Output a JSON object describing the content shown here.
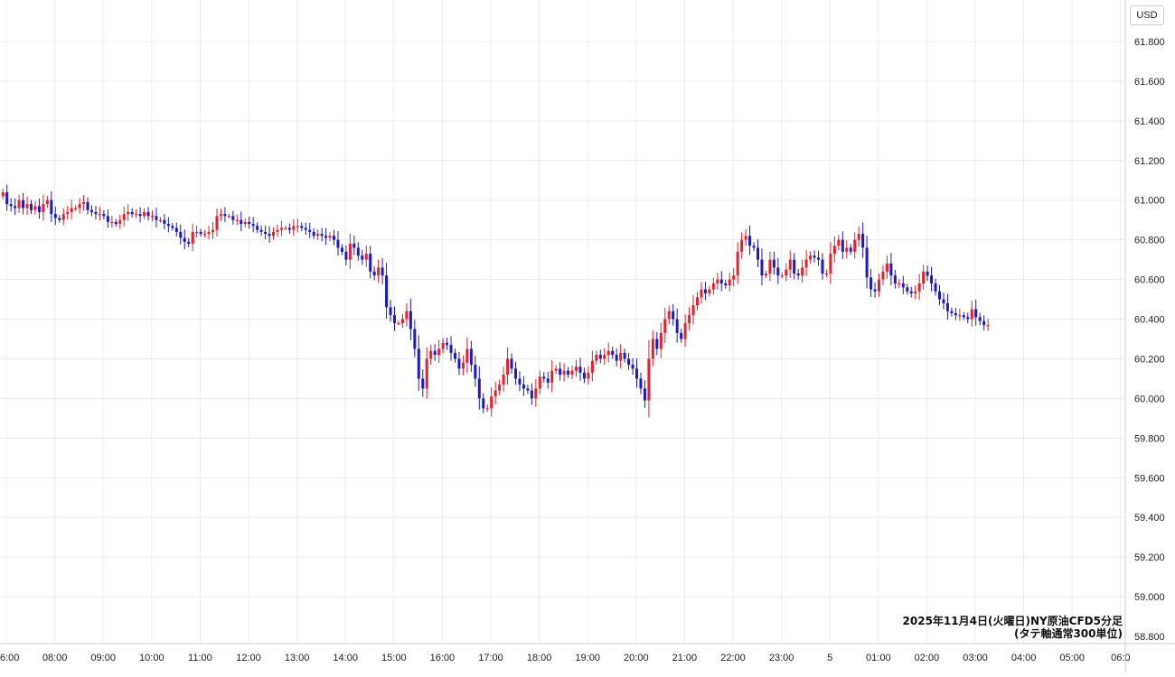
{
  "currency": "USD",
  "caption": {
    "line1": "2025年11月4日(火曜日)NY原油CFD5分足",
    "line2": "(タテ軸通常300単位)"
  },
  "colors": {
    "up": "#e8202a",
    "down": "#1a1acc",
    "grid": "#e6ecf2",
    "axis_text": "#222222",
    "background": "#ffffff"
  },
  "chart_data": {
    "type": "candlestick",
    "title": "2025年11月4日(火曜日)NY原油CFD5分足",
    "subtitle": "(タテ軸通常300単位)",
    "ylabel": "USD",
    "ylim": [
      58.8,
      61.8
    ],
    "y_ticks": [
      "61.800",
      "61.600",
      "61.400",
      "61.200",
      "61.000",
      "60.800",
      "60.600",
      "60.400",
      "60.200",
      "60.000",
      "59.800",
      "59.600",
      "59.400",
      "59.200",
      "59.000",
      "58.800"
    ],
    "x_ticks": [
      "6:00",
      "08:00",
      "09:00",
      "10:00",
      "11:00",
      "12:00",
      "13:00",
      "14:00",
      "15:00",
      "16:00",
      "17:00",
      "18:00",
      "19:00",
      "20:00",
      "21:00",
      "22:00",
      "23:00",
      "5",
      "01:00",
      "02:00",
      "03:00",
      "04:00",
      "05:00",
      "06:0"
    ],
    "grid": true,
    "interval": "5m",
    "candles_per_hour": 12,
    "first_time": "07:00",
    "price_path": [
      61.04,
      60.98,
      60.97,
      60.96,
      61.0,
      60.96,
      60.98,
      60.95,
      60.97,
      60.94,
      60.98,
      61.0,
      60.93,
      60.91,
      60.9,
      60.93,
      60.94,
      60.96,
      60.96,
      60.98,
      60.99,
      60.95,
      60.94,
      60.93,
      60.93,
      60.92,
      60.89,
      60.89,
      60.88,
      60.9,
      60.93,
      60.94,
      60.93,
      60.93,
      60.92,
      60.94,
      60.92,
      60.92,
      60.9,
      60.9,
      60.88,
      60.87,
      60.86,
      60.84,
      60.81,
      60.79,
      60.78,
      60.84,
      60.84,
      60.83,
      60.83,
      60.84,
      60.85,
      60.92,
      60.93,
      60.92,
      60.92,
      60.9,
      60.9,
      60.88,
      60.89,
      60.88,
      60.87,
      60.85,
      60.84,
      60.83,
      60.82,
      60.84,
      60.85,
      60.86,
      60.86,
      60.85,
      60.87,
      60.87,
      60.86,
      60.85,
      60.84,
      60.82,
      60.83,
      60.82,
      60.81,
      60.82,
      60.8,
      60.76,
      60.74,
      60.7,
      60.78,
      60.76,
      60.72,
      60.7,
      60.73,
      60.64,
      60.62,
      60.66,
      60.62,
      60.46,
      60.42,
      60.38,
      60.38,
      60.4,
      60.44,
      60.35,
      60.25,
      60.1,
      60.05,
      60.2,
      60.24,
      60.22,
      60.25,
      60.28,
      60.27,
      60.23,
      60.2,
      60.15,
      60.18,
      60.25,
      60.17,
      60.1,
      60.0,
      59.95,
      59.95,
      60.01,
      60.04,
      60.07,
      60.12,
      60.2,
      60.15,
      60.1,
      60.07,
      60.05,
      60.04,
      60.0,
      60.05,
      60.11,
      60.1,
      60.08,
      60.14,
      60.15,
      60.12,
      60.14,
      60.12,
      60.14,
      60.16,
      60.13,
      60.1,
      60.13,
      60.19,
      60.22,
      60.2,
      60.22,
      60.24,
      60.22,
      60.19,
      60.23,
      60.2,
      60.17,
      60.15,
      60.1,
      60.05,
      59.99,
      60.2,
      60.3,
      60.25,
      60.33,
      60.4,
      60.44,
      60.4,
      60.33,
      60.3,
      60.38,
      60.42,
      60.47,
      60.51,
      60.55,
      60.53,
      60.55,
      60.58,
      60.6,
      60.58,
      60.57,
      60.6,
      60.62,
      60.74,
      60.8,
      60.82,
      60.77,
      60.76,
      60.7,
      60.62,
      60.63,
      60.7,
      60.66,
      60.62,
      60.62,
      60.65,
      60.7,
      60.63,
      60.62,
      60.66,
      60.7,
      60.72,
      60.71,
      60.7,
      60.63,
      60.63,
      60.73,
      60.77,
      60.8,
      60.74,
      60.76,
      60.74,
      60.8,
      60.83,
      60.76,
      60.61,
      60.55,
      60.54,
      60.6,
      60.64,
      60.68,
      60.62,
      60.58,
      60.58,
      60.56,
      60.54,
      60.53,
      60.54,
      60.58,
      60.64,
      60.62,
      60.58,
      60.54,
      60.5,
      60.48,
      60.44,
      60.43,
      60.42,
      60.42,
      60.41,
      60.4,
      60.45,
      60.41,
      60.39,
      60.37,
      60.37
    ]
  }
}
